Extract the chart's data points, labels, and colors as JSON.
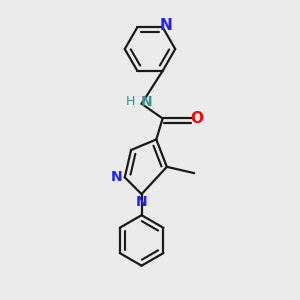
{
  "bg_color": "#ebebeb",
  "bond_color": "#1a1a1a",
  "N_color": "#2020ff",
  "O_color": "#ff0000",
  "NH_color": "#3a9090",
  "line_width": 1.6,
  "font_size": 10,
  "xlim": [
    -1.8,
    2.5
  ],
  "ylim": [
    -3.8,
    3.2
  ],
  "figsize": [
    3.0,
    3.0
  ],
  "dpi": 100
}
